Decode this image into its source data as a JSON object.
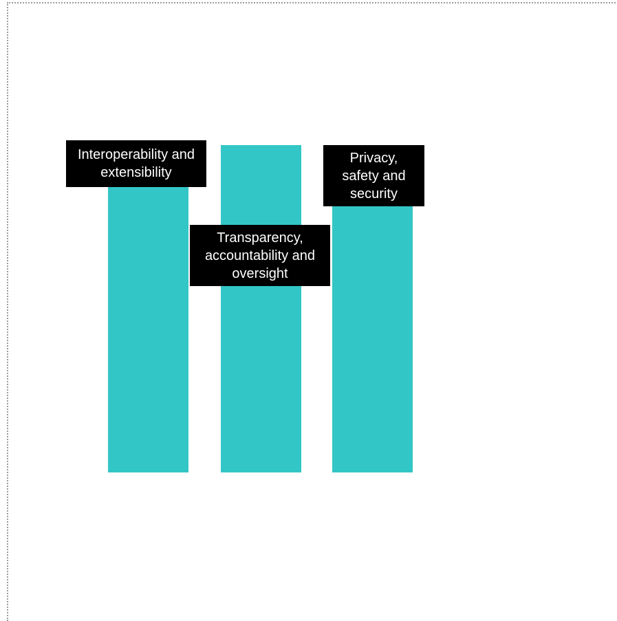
{
  "colors": {
    "pillar": "#33c6c6",
    "label_background": "#000000",
    "label_text": "#ffffff",
    "frame_border": "#9a9a9a"
  },
  "pillars": [
    {
      "label": "Interoperability and\nextensibility"
    },
    {
      "label": "Transparency,\naccountability and\noversight"
    },
    {
      "label": "Privacy,\nsafety and\nsecurity"
    }
  ]
}
